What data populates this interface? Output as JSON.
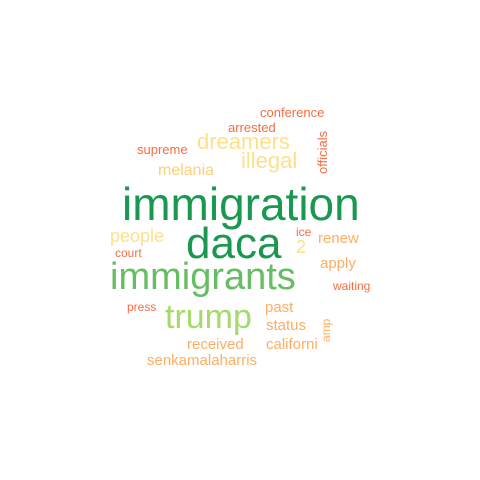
{
  "words": [
    {
      "text": "immigration",
      "color": "#1a9850"
    },
    {
      "text": "daca",
      "color": "#1a9850"
    },
    {
      "text": "immigrants",
      "color": "#66bd63"
    },
    {
      "text": "trump",
      "color": "#a6d96a"
    },
    {
      "text": "dreamers",
      "color": "#fee08b"
    },
    {
      "text": "illegal",
      "color": "#fee08b"
    },
    {
      "text": "melania",
      "color": "#fdd07a"
    },
    {
      "text": "people",
      "color": "#fee08b"
    },
    {
      "text": "2",
      "color": "#fee08b"
    },
    {
      "text": "renew",
      "color": "#fdae61"
    },
    {
      "text": "apply",
      "color": "#fdae61"
    },
    {
      "text": "past",
      "color": "#fdae61"
    },
    {
      "text": "status",
      "color": "#fdae61"
    },
    {
      "text": "received",
      "color": "#fdae61"
    },
    {
      "text": "californi",
      "color": "#fdae61"
    },
    {
      "text": "senkamalaharris",
      "color": "#fdae61"
    },
    {
      "text": "conference",
      "color": "#f46d43"
    },
    {
      "text": "arrested",
      "color": "#f46d43"
    },
    {
      "text": "supreme",
      "color": "#f46d43"
    },
    {
      "text": "officials",
      "color": "#f46d43"
    },
    {
      "text": "ice",
      "color": "#f46d43"
    },
    {
      "text": "court",
      "color": "#f46d43"
    },
    {
      "text": "waiting",
      "color": "#f46d43"
    },
    {
      "text": "press",
      "color": "#f46d43"
    },
    {
      "text": "amp",
      "color": "#fdae61"
    }
  ]
}
